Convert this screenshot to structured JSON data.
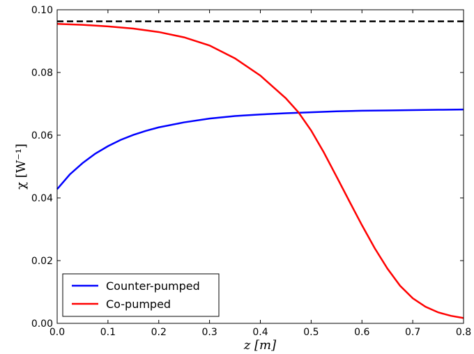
{
  "chart_data": {
    "type": "line",
    "xlabel": "z [m]",
    "ylabel": "χ [W⁻¹]",
    "xlim": [
      0.0,
      0.8
    ],
    "ylim": [
      0.0,
      0.1
    ],
    "xticks": [
      0.0,
      0.1,
      0.2,
      0.3,
      0.4,
      0.5,
      0.6,
      0.7,
      0.8
    ],
    "xtick_labels": [
      "0.0",
      "0.1",
      "0.2",
      "0.3",
      "0.4",
      "0.5",
      "0.6",
      "0.7",
      "0.8"
    ],
    "yticks": [
      0.0,
      0.02,
      0.04,
      0.06,
      0.08,
      0.1
    ],
    "ytick_labels": [
      "0.00",
      "0.02",
      "0.04",
      "0.06",
      "0.08",
      "0.10"
    ],
    "grid": false,
    "legend_position": "bottom-left",
    "series": [
      {
        "name": "Counter-pumped",
        "color": "#0000ff",
        "style": "solid",
        "x": [
          0.0,
          0.025,
          0.05,
          0.075,
          0.1,
          0.125,
          0.15,
          0.175,
          0.2,
          0.25,
          0.3,
          0.35,
          0.4,
          0.45,
          0.5,
          0.55,
          0.6,
          0.65,
          0.7,
          0.75,
          0.8
        ],
        "y": [
          0.0428,
          0.0475,
          0.0511,
          0.0541,
          0.0565,
          0.0585,
          0.0601,
          0.0614,
          0.0625,
          0.0641,
          0.0653,
          0.0661,
          0.0666,
          0.067,
          0.0673,
          0.0676,
          0.0678,
          0.0679,
          0.068,
          0.0681,
          0.0682
        ]
      },
      {
        "name": "Co-pumped",
        "color": "#ff0000",
        "style": "solid",
        "x": [
          0.0,
          0.05,
          0.1,
          0.15,
          0.2,
          0.25,
          0.3,
          0.35,
          0.4,
          0.45,
          0.475,
          0.5,
          0.525,
          0.55,
          0.575,
          0.6,
          0.625,
          0.65,
          0.675,
          0.7,
          0.725,
          0.75,
          0.775,
          0.8
        ],
        "y": [
          0.0955,
          0.0952,
          0.0947,
          0.094,
          0.0929,
          0.0912,
          0.0886,
          0.0845,
          0.079,
          0.0718,
          0.0673,
          0.0615,
          0.0545,
          0.0468,
          0.039,
          0.0313,
          0.024,
          0.0175,
          0.012,
          0.008,
          0.0053,
          0.0035,
          0.0024,
          0.0017
        ]
      },
      {
        "name": "",
        "color": "#000000",
        "style": "dashed",
        "x": [
          0.0,
          0.8
        ],
        "y": [
          0.0963,
          0.0963
        ]
      }
    ]
  }
}
